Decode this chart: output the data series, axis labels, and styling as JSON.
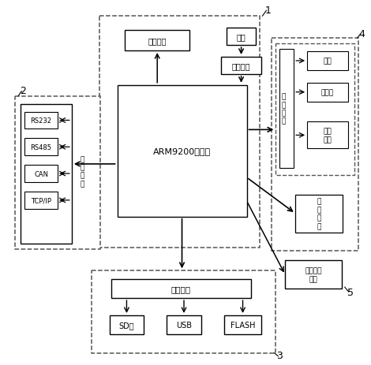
{
  "bg_color": "#ffffff",
  "fig_width": 4.7,
  "fig_height": 4.64,
  "dpi": 100,
  "labels": {
    "arm": "ARM9200控制器",
    "bootstrap": "引导芯片",
    "power": "电源",
    "power_port": "电源接口",
    "comm_label": "通\n讯\n接\n口",
    "rs232": "RS232",
    "rs485": "RS485",
    "can": "CAN",
    "tcpip": "TCP/IP",
    "storage_port": "存储接口",
    "sd": "SD卡",
    "usb": "USB",
    "flash": "FLASH",
    "display_vertical": "接\n口\n显\n示",
    "display": "显示",
    "display_screen": "显示屏",
    "display_cap": "显示\n电容",
    "debug_cap": "调\n试\n电\n容",
    "image_unit": "摄像处理\n单元",
    "label1": "1",
    "label2": "2",
    "label3": "3",
    "label4": "4",
    "label5": "5"
  },
  "colors": {
    "box": "#000000",
    "dashed": "#666666",
    "arrow": "#000000",
    "text": "#000000",
    "bg": "#ffffff"
  }
}
